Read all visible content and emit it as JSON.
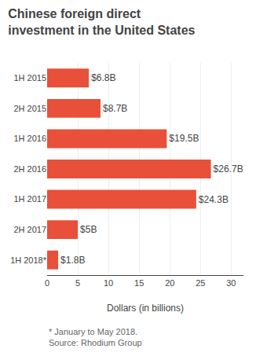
{
  "chart_data": {
    "type": "bar",
    "orientation": "horizontal",
    "title": "Chinese foreign direct\ninvestment in the United States",
    "categories": [
      "1H 2015",
      "2H 2015",
      "1H 2016",
      "2H 2016",
      "1H 2017",
      "2H 2017",
      "1H 2018*"
    ],
    "values": [
      6.8,
      8.7,
      19.5,
      26.7,
      24.3,
      5.0,
      1.8
    ],
    "value_labels": [
      "$6.8B",
      "$8.7B",
      "$19.5B",
      "$26.7B",
      "$24.3B",
      "$5B",
      "$1.8B"
    ],
    "data_labels": true,
    "color": "#e8503a",
    "xlabel": "Dollars (in billions)",
    "xlim": [
      0,
      32
    ],
    "xticks": [
      0,
      5,
      10,
      15,
      20,
      25,
      30
    ],
    "grid": true,
    "footnote": "* January to May 2018.\nSource: Rhodium Group"
  }
}
